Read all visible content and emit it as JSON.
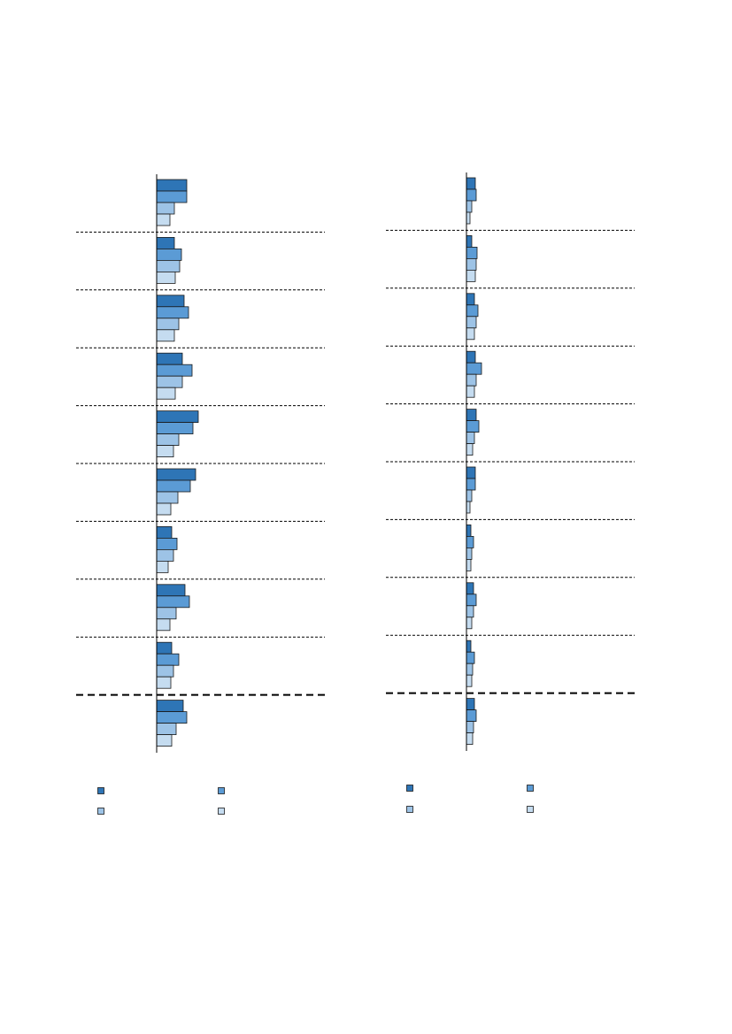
{
  "chart_data": [
    {
      "type": "bar",
      "orientation": "horizontal",
      "categories": [
        null,
        null,
        null,
        null,
        null,
        null,
        null,
        null,
        null,
        null
      ],
      "xlim": [
        0,
        190
      ],
      "series": [
        {
          "color": "#2e75b6",
          "values": [
            34,
            20,
            31,
            29,
            47,
            44,
            17,
            32,
            17,
            30
          ]
        },
        {
          "color": "#5b9bd5",
          "values": [
            34,
            28,
            36,
            40,
            41,
            38,
            23,
            37,
            25,
            34
          ]
        },
        {
          "color": "#9dc3e6",
          "values": [
            20,
            26,
            25,
            29,
            25,
            24,
            19,
            22,
            19,
            22
          ]
        },
        {
          "color": "#c5dcf0",
          "values": [
            15,
            21,
            20,
            21,
            19,
            16,
            13,
            15,
            16,
            17
          ]
        }
      ]
    },
    {
      "type": "bar",
      "orientation": "horizontal",
      "categories": [
        null,
        null,
        null,
        null,
        null,
        null,
        null,
        null,
        null,
        null
      ],
      "xlim": [
        0,
        190
      ],
      "series": [
        {
          "color": "#2e75b6",
          "values": [
            10,
            6,
            9,
            10,
            11,
            10,
            5,
            8,
            5,
            9
          ]
        },
        {
          "color": "#5b9bd5",
          "values": [
            11,
            12,
            13,
            17,
            14,
            10,
            8,
            11,
            9,
            11
          ]
        },
        {
          "color": "#9dc3e6",
          "values": [
            6,
            11,
            11,
            11,
            9,
            6,
            6,
            8,
            7,
            8
          ]
        },
        {
          "color": "#c5dcf0",
          "values": [
            4,
            10,
            9,
            9,
            7,
            4,
            5,
            6,
            6,
            7
          ]
        }
      ]
    }
  ]
}
